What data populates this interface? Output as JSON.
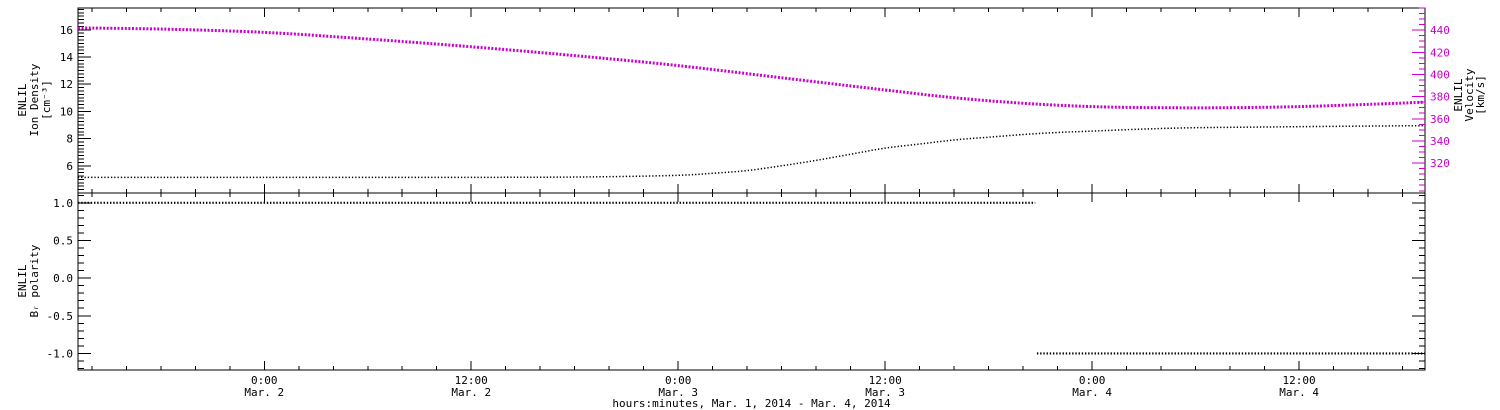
{
  "figure": {
    "background": "#ffffff",
    "axis_color": "#000000",
    "accent_color": "#cc00cc",
    "xlabel": "hours:minutes, Mar. 1, 2014 - Mar. 4, 2014",
    "x_range_hours": [
      13.2,
      91.3
    ],
    "x_major_tick_hours": [
      24,
      36,
      48,
      60,
      72,
      84
    ],
    "x_minor_step_hours": 2,
    "x_tick_labels": [
      {
        "hour": 24,
        "line1": "0:00",
        "line2": "Mar. 2"
      },
      {
        "hour": 36,
        "line1": "12:00",
        "line2": "Mar. 2"
      },
      {
        "hour": 48,
        "line1": "0:00",
        "line2": "Mar. 3"
      },
      {
        "hour": 60,
        "line1": "12:00",
        "line2": "Mar. 3"
      },
      {
        "hour": 72,
        "line1": "0:00",
        "line2": "Mar. 4"
      },
      {
        "hour": 84,
        "line1": "12:00",
        "line2": "Mar. 4"
      }
    ]
  },
  "chart_data": [
    {
      "type": "line",
      "panel": "density-velocity",
      "title": "ENLIL ion density (black, left axis) and velocity (magenta, right axis)",
      "ylabel_left_lines": [
        "ENLIL",
        "Ion Density",
        "[cm⁻³]"
      ],
      "y_left_range": [
        4.0,
        17.6
      ],
      "y_left_major_ticks": [
        6,
        8,
        10,
        12,
        14,
        16
      ],
      "y_left_tick_labels": [
        "6",
        "8",
        "10",
        "12",
        "14",
        "16"
      ],
      "y_left_minor_step": 0.25,
      "ylabel_right_lines": [
        "ENLIL",
        "Velocity",
        "[km/s]"
      ],
      "y_right_range": [
        293,
        460
      ],
      "y_right_major_ticks": [
        320,
        340,
        360,
        380,
        400,
        420,
        440
      ],
      "y_right_tick_labels": [
        "320",
        "340",
        "360",
        "380",
        "400",
        "420",
        "440"
      ],
      "y_right_minor_step": 5,
      "grid": false,
      "legend": "none",
      "series": [
        {
          "name": "ion_density",
          "axis": "left",
          "color": "#000000",
          "marker_style": "dense-dots",
          "x_hours": [
            13.2,
            24,
            34,
            40,
            44,
            48,
            50,
            52,
            54,
            56,
            58,
            60,
            62,
            64,
            66,
            68,
            70,
            72,
            75,
            78,
            82,
            86,
            91.3
          ],
          "values": [
            5.15,
            5.15,
            5.15,
            5.16,
            5.2,
            5.3,
            5.45,
            5.65,
            6.0,
            6.4,
            6.85,
            7.3,
            7.6,
            7.9,
            8.1,
            8.3,
            8.45,
            8.55,
            8.7,
            8.8,
            8.85,
            8.9,
            8.95
          ]
        },
        {
          "name": "velocity",
          "axis": "right",
          "color": "#cc00cc",
          "marker_style": "dense-dots",
          "x_hours": [
            13.2,
            18,
            24,
            30,
            36,
            42,
            48,
            54,
            60,
            64,
            68,
            72,
            76,
            80,
            84,
            88,
            91.3
          ],
          "values": [
            442,
            441,
            438,
            432,
            425,
            417,
            408,
            397,
            386,
            379,
            374,
            371,
            370,
            370,
            371,
            373,
            375
          ]
        }
      ]
    },
    {
      "type": "line",
      "panel": "br-polarity",
      "title": "ENLIL Br polarity",
      "ylabel_left_lines": [
        "ENLIL",
        "Bᵣ polarity"
      ],
      "y_left_range": [
        -1.22,
        1.13
      ],
      "y_left_major_ticks": [
        1.0,
        0.5,
        0.0,
        -0.5,
        -1.0
      ],
      "y_left_tick_labels": [
        "1.0",
        "0.5",
        "0.0",
        "-0.5",
        "-1.0"
      ],
      "y_left_minor_step": 0.1,
      "grid": false,
      "legend": "none",
      "series": [
        {
          "name": "br_polarity",
          "color": "#000000",
          "marker_style": "dense-dots",
          "segments": [
            {
              "x_start_hours": 13.2,
              "x_end_hours": 68.7,
              "value": 1.0
            },
            {
              "x_start_hours": 68.8,
              "x_end_hours": 91.3,
              "value": -1.0
            }
          ]
        }
      ]
    }
  ]
}
